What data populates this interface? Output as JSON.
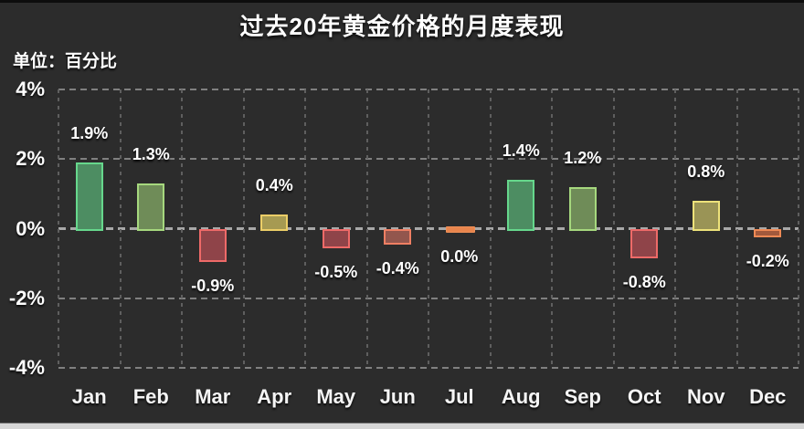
{
  "page": {
    "background_color": "#2c2c2c",
    "top_edge_color": "#0d0d0d",
    "bottom_bar_color": "#d6d6d6",
    "grid_color": "#808080",
    "zero_grid_color": "#a8a8a8",
    "vgrid_color": "#5f5f5f",
    "text_color": "#ffffff"
  },
  "chart_data": {
    "type": "bar",
    "title": "过去20年黄金价格的月度表现",
    "unit_label": "单位：百分比",
    "categories": [
      "Jan",
      "Feb",
      "Mar",
      "Apr",
      "May",
      "Jun",
      "Jul",
      "Aug",
      "Sep",
      "Oct",
      "Nov",
      "Dec"
    ],
    "values": [
      1.9,
      1.3,
      -0.9,
      0.4,
      -0.5,
      -0.4,
      0.0,
      1.4,
      1.2,
      -0.8,
      0.8,
      -0.2
    ],
    "value_labels": [
      "1.9%",
      "1.3%",
      "-0.9%",
      "0.4%",
      "-0.5%",
      "-0.4%",
      "0.0%",
      "1.4%",
      "1.2%",
      "-0.8%",
      "0.8%",
      "-0.2%"
    ],
    "xlabel": "",
    "ylabel": "%",
    "ylim": [
      -4,
      4
    ],
    "y_ticks": [
      {
        "label": "4%",
        "value": 4
      },
      {
        "label": "2%",
        "value": 2
      },
      {
        "label": "0%",
        "value": 0
      },
      {
        "label": "-2%",
        "value": -2
      },
      {
        "label": "-4%",
        "value": -4
      }
    ],
    "grid": "dashed",
    "legend_position": "none",
    "bar_styles": [
      {
        "fill": "#4d8d62",
        "border": "#66d78c"
      },
      {
        "fill": "#6f8c58",
        "border": "#a6d87e"
      },
      {
        "fill": "#8f4449",
        "border": "#ee6a68"
      },
      {
        "fill": "#a69a52",
        "border": "#ecce67"
      },
      {
        "fill": "#8f4449",
        "border": "#ee6a68"
      },
      {
        "fill": "#93564d",
        "border": "#ef7f63"
      },
      {
        "fill": "#e8854d",
        "border": "#f09057"
      },
      {
        "fill": "#4d8d62",
        "border": "#66d78c"
      },
      {
        "fill": "#6f8c58",
        "border": "#a6d87e"
      },
      {
        "fill": "#8f4449",
        "border": "#ee6a68"
      },
      {
        "fill": "#9a9456",
        "border": "#ede27a"
      },
      {
        "fill": "#a2593c",
        "border": "#ef8a55"
      }
    ]
  }
}
